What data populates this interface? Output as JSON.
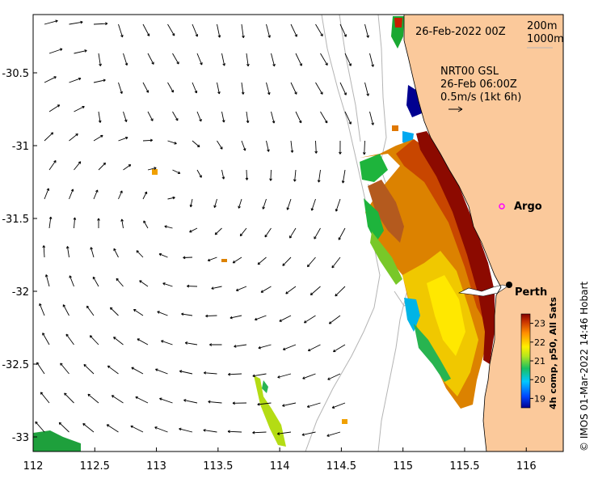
{
  "header": {
    "date_label": "26-Feb-2022 00Z",
    "contour_shallow": "200m",
    "contour_deep": "1000m"
  },
  "current_legend": {
    "line1": "NRT00 GSL",
    "line2": "26-Feb 06:00Z",
    "line3": "0.5m/s (1kt 6h)"
  },
  "places": [
    {
      "name": "Argo",
      "lon": 115.78,
      "lat": -31.45
    },
    {
      "name": "Perth",
      "lon": 115.86,
      "lat": -31.95
    }
  ],
  "axes": {
    "x_ticks": [
      "112",
      "112.5",
      "113",
      "113.5",
      "114",
      "114.5",
      "115",
      "115.5",
      "116"
    ],
    "y_ticks": [
      "-30.5",
      "-31",
      "-31.5",
      "-32",
      "-32.5",
      "-33"
    ],
    "x_range": [
      112,
      116.3
    ],
    "y_range": [
      -33.1,
      -30.1
    ]
  },
  "colorbar": {
    "ticks": [
      "23",
      "22",
      "21",
      "20",
      "19"
    ],
    "label": "4h comp, p50, All Sats",
    "range": [
      18.5,
      23.5
    ]
  },
  "credit": "© IMOS 01-Mar-2022 14:46 Hobart",
  "colors": {
    "land": "#fbc99b",
    "sea": "#ffffff",
    "contour": "#b4b4b4",
    "argo_marker": "#ff00ff"
  }
}
